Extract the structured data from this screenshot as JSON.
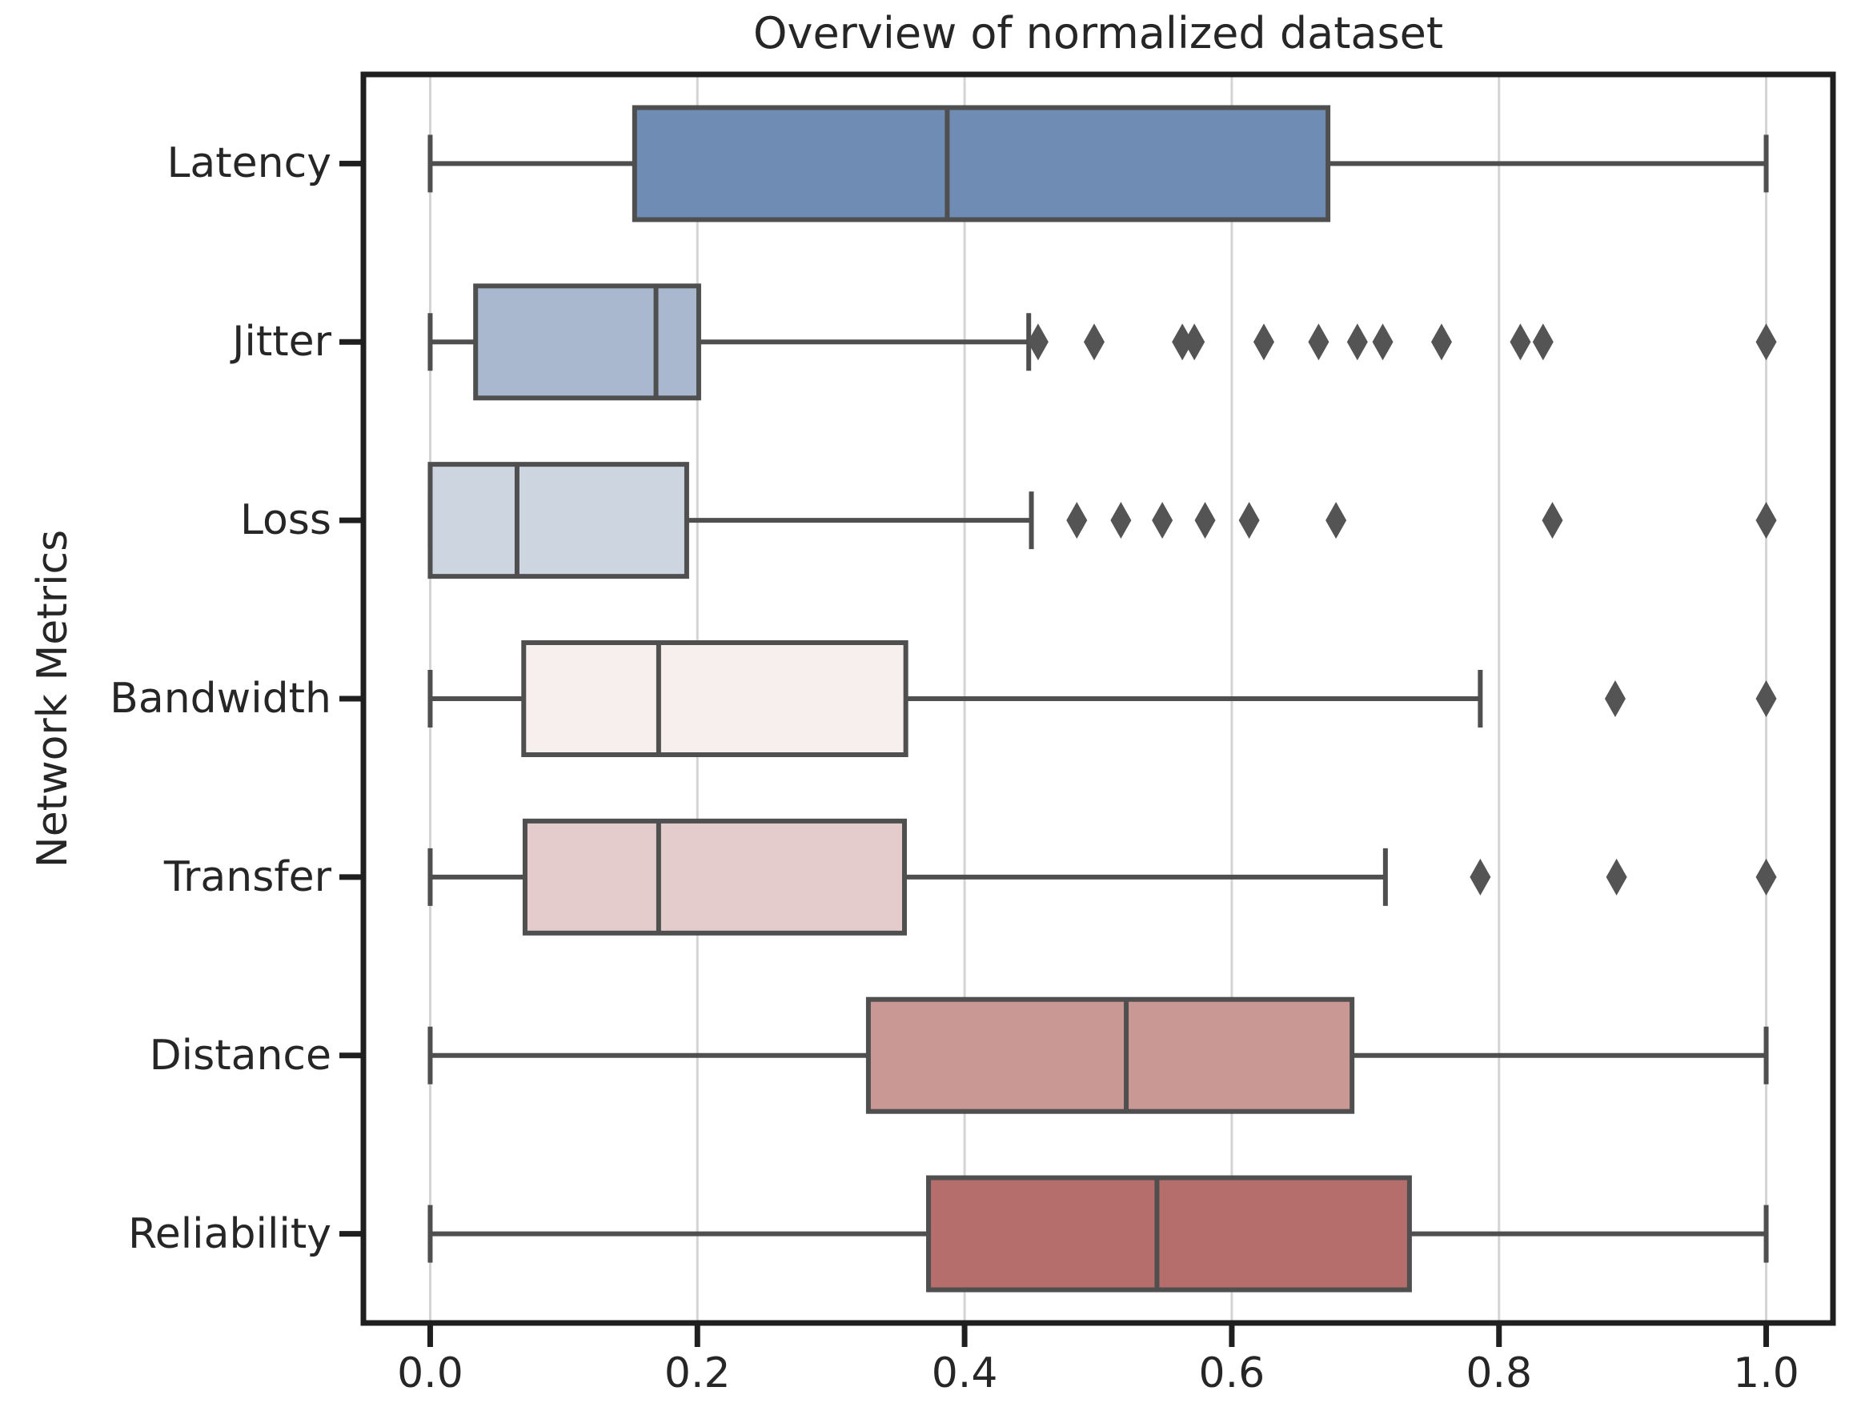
{
  "chart_data": {
    "type": "box",
    "orientation": "horizontal",
    "title": "Overview of normalized dataset",
    "xlabel": "",
    "ylabel": "Network Metrics",
    "xlim": [
      -0.05,
      1.05
    ],
    "x_ticks": [
      "0.0",
      "0.2",
      "0.4",
      "0.6",
      "0.8",
      "1.0"
    ],
    "x_tick_values": [
      0.0,
      0.2,
      0.4,
      0.6,
      0.8,
      1.0
    ],
    "grid": "vertical gridlines on, horizontal off",
    "legend": "none",
    "categories": [
      "Latency",
      "Jitter",
      "Loss",
      "Bandwidth",
      "Transfer",
      "Distance",
      "Reliability"
    ],
    "series": [
      {
        "name": "Latency",
        "whisker_low": 0.0,
        "q1": 0.153,
        "median": 0.387,
        "q3": 0.672,
        "whisker_high": 1.0,
        "outliers": [],
        "fill": "#6f8cb4"
      },
      {
        "name": "Jitter",
        "whisker_low": 0.0,
        "q1": 0.034,
        "median": 0.169,
        "q3": 0.201,
        "whisker_high": 0.448,
        "outliers": [
          0.455,
          0.497,
          0.563,
          0.572,
          0.624,
          0.665,
          0.694,
          0.713,
          0.757,
          0.816,
          0.833,
          1.0
        ],
        "fill": "#a9b8ce"
      },
      {
        "name": "Loss",
        "whisker_low": 0.0,
        "q1": 0.0,
        "median": 0.065,
        "q3": 0.192,
        "whisker_high": 0.45,
        "outliers": [
          0.484,
          0.517,
          0.548,
          0.58,
          0.613,
          0.678,
          0.84,
          1.0
        ],
        "fill": "#cdd5e1"
      },
      {
        "name": "Bandwidth",
        "whisker_low": 0.0,
        "q1": 0.07,
        "median": 0.171,
        "q3": 0.356,
        "whisker_high": 0.786,
        "outliers": [
          0.887,
          1.0
        ],
        "fill": "#f7efee"
      },
      {
        "name": "Transfer",
        "whisker_low": 0.0,
        "q1": 0.071,
        "median": 0.171,
        "q3": 0.355,
        "whisker_high": 0.715,
        "outliers": [
          0.786,
          0.888,
          1.0
        ],
        "fill": "#e4cccd"
      },
      {
        "name": "Distance",
        "whisker_low": 0.0,
        "q1": 0.328,
        "median": 0.521,
        "q3": 0.69,
        "whisker_high": 1.0,
        "outliers": [],
        "fill": "#c99794"
      },
      {
        "name": "Reliability",
        "whisker_low": 0.0,
        "q1": 0.373,
        "median": 0.544,
        "q3": 0.733,
        "whisker_high": 1.0,
        "outliers": [],
        "fill": "#b56e6b"
      }
    ],
    "colors": {
      "box_edge": "#4f4f4f",
      "whisker": "#4f4f4f",
      "median": "#4f4f4f",
      "outlier": "#545454",
      "grid": "#d4d4d4",
      "spine": "#1f1f1f",
      "text": "#262626",
      "background": "#ffffff"
    }
  }
}
